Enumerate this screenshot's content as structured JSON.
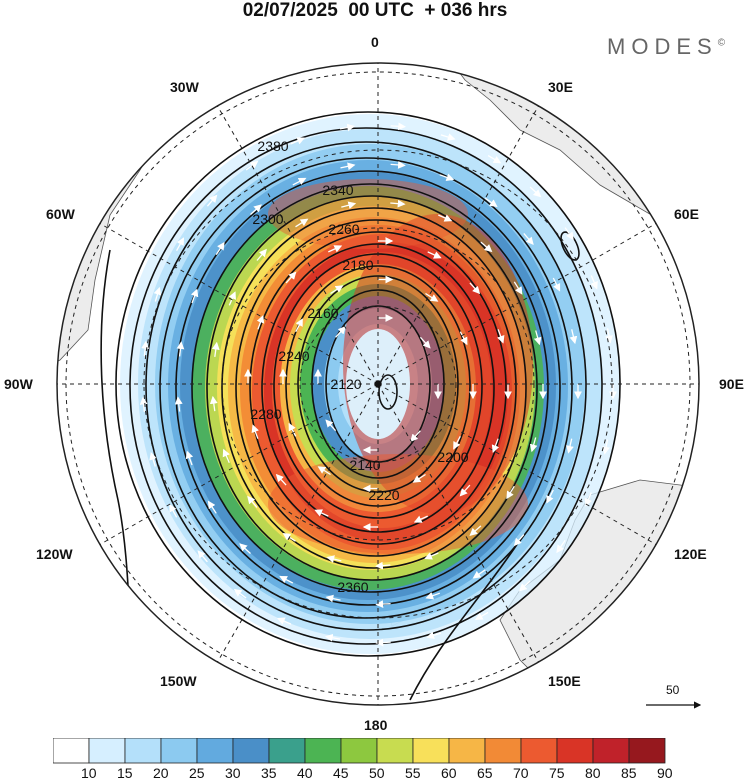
{
  "title": "02/07/2025  00 UTC  + 036 hrs",
  "brand": "MODES",
  "brand_mark": "©",
  "longitude_labels": {
    "top": "0",
    "bottom": "180",
    "left": "90W",
    "right": "90E",
    "w30": "30W",
    "e30": "30E",
    "w60": "60W",
    "e60": "60E",
    "w120": "120W",
    "e120": "120E",
    "w150": "150W",
    "e150": "150E"
  },
  "contour_labels": [
    "2380",
    "2340",
    "2300",
    "2260",
    "2180",
    "2160",
    "2120",
    "2140",
    "2200",
    "2220",
    "2240",
    "2280",
    "2360"
  ],
  "vector_reference": "50",
  "colorbar": {
    "labels": [
      "10",
      "15",
      "20",
      "25",
      "30",
      "35",
      "40",
      "45",
      "50",
      "55",
      "60",
      "65",
      "70",
      "75",
      "80",
      "85",
      "90"
    ],
    "colors": [
      "#ffffff",
      "#d6efff",
      "#b4e0fa",
      "#8ccaf0",
      "#62aadf",
      "#4a8fc8",
      "#3aa08c",
      "#4cb453",
      "#8dc83f",
      "#c8dc50",
      "#f8e05a",
      "#f6b646",
      "#f28a36",
      "#ec5a30",
      "#d93426",
      "#c0222a",
      "#96181e"
    ]
  }
}
